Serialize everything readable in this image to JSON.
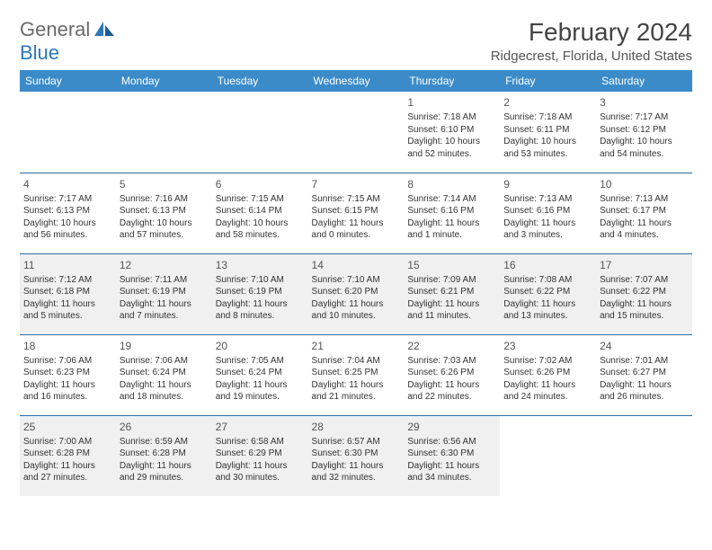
{
  "logo": {
    "line1": "General",
    "line2": "Blue"
  },
  "title": "February 2024",
  "location": "Ridgecrest, Florida, United States",
  "colors": {
    "header_bg": "#3b8bc9",
    "header_text": "#ffffff",
    "row_alt_bg": "#f0f0f0",
    "border_color": "#2d6ea8",
    "logo_gray": "#6a6a6a",
    "logo_blue": "#2d77bd"
  },
  "weekdays": [
    "Sunday",
    "Monday",
    "Tuesday",
    "Wednesday",
    "Thursday",
    "Friday",
    "Saturday"
  ],
  "weeks": [
    [
      null,
      null,
      null,
      null,
      {
        "n": "1",
        "sr": "7:18 AM",
        "ss": "6:10 PM",
        "dl": "10 hours and 52 minutes."
      },
      {
        "n": "2",
        "sr": "7:18 AM",
        "ss": "6:11 PM",
        "dl": "10 hours and 53 minutes."
      },
      {
        "n": "3",
        "sr": "7:17 AM",
        "ss": "6:12 PM",
        "dl": "10 hours and 54 minutes."
      }
    ],
    [
      {
        "n": "4",
        "sr": "7:17 AM",
        "ss": "6:13 PM",
        "dl": "10 hours and 56 minutes."
      },
      {
        "n": "5",
        "sr": "7:16 AM",
        "ss": "6:13 PM",
        "dl": "10 hours and 57 minutes."
      },
      {
        "n": "6",
        "sr": "7:15 AM",
        "ss": "6:14 PM",
        "dl": "10 hours and 58 minutes."
      },
      {
        "n": "7",
        "sr": "7:15 AM",
        "ss": "6:15 PM",
        "dl": "11 hours and 0 minutes."
      },
      {
        "n": "8",
        "sr": "7:14 AM",
        "ss": "6:16 PM",
        "dl": "11 hours and 1 minute."
      },
      {
        "n": "9",
        "sr": "7:13 AM",
        "ss": "6:16 PM",
        "dl": "11 hours and 3 minutes."
      },
      {
        "n": "10",
        "sr": "7:13 AM",
        "ss": "6:17 PM",
        "dl": "11 hours and 4 minutes."
      }
    ],
    [
      {
        "n": "11",
        "sr": "7:12 AM",
        "ss": "6:18 PM",
        "dl": "11 hours and 5 minutes."
      },
      {
        "n": "12",
        "sr": "7:11 AM",
        "ss": "6:19 PM",
        "dl": "11 hours and 7 minutes."
      },
      {
        "n": "13",
        "sr": "7:10 AM",
        "ss": "6:19 PM",
        "dl": "11 hours and 8 minutes."
      },
      {
        "n": "14",
        "sr": "7:10 AM",
        "ss": "6:20 PM",
        "dl": "11 hours and 10 minutes."
      },
      {
        "n": "15",
        "sr": "7:09 AM",
        "ss": "6:21 PM",
        "dl": "11 hours and 11 minutes."
      },
      {
        "n": "16",
        "sr": "7:08 AM",
        "ss": "6:22 PM",
        "dl": "11 hours and 13 minutes."
      },
      {
        "n": "17",
        "sr": "7:07 AM",
        "ss": "6:22 PM",
        "dl": "11 hours and 15 minutes."
      }
    ],
    [
      {
        "n": "18",
        "sr": "7:06 AM",
        "ss": "6:23 PM",
        "dl": "11 hours and 16 minutes."
      },
      {
        "n": "19",
        "sr": "7:06 AM",
        "ss": "6:24 PM",
        "dl": "11 hours and 18 minutes."
      },
      {
        "n": "20",
        "sr": "7:05 AM",
        "ss": "6:24 PM",
        "dl": "11 hours and 19 minutes."
      },
      {
        "n": "21",
        "sr": "7:04 AM",
        "ss": "6:25 PM",
        "dl": "11 hours and 21 minutes."
      },
      {
        "n": "22",
        "sr": "7:03 AM",
        "ss": "6:26 PM",
        "dl": "11 hours and 22 minutes."
      },
      {
        "n": "23",
        "sr": "7:02 AM",
        "ss": "6:26 PM",
        "dl": "11 hours and 24 minutes."
      },
      {
        "n": "24",
        "sr": "7:01 AM",
        "ss": "6:27 PM",
        "dl": "11 hours and 26 minutes."
      }
    ],
    [
      {
        "n": "25",
        "sr": "7:00 AM",
        "ss": "6:28 PM",
        "dl": "11 hours and 27 minutes."
      },
      {
        "n": "26",
        "sr": "6:59 AM",
        "ss": "6:28 PM",
        "dl": "11 hours and 29 minutes."
      },
      {
        "n": "27",
        "sr": "6:58 AM",
        "ss": "6:29 PM",
        "dl": "11 hours and 30 minutes."
      },
      {
        "n": "28",
        "sr": "6:57 AM",
        "ss": "6:30 PM",
        "dl": "11 hours and 32 minutes."
      },
      {
        "n": "29",
        "sr": "6:56 AM",
        "ss": "6:30 PM",
        "dl": "11 hours and 34 minutes."
      },
      null,
      null
    ]
  ],
  "labels": {
    "sunrise": "Sunrise:",
    "sunset": "Sunset:",
    "daylight": "Daylight:"
  }
}
